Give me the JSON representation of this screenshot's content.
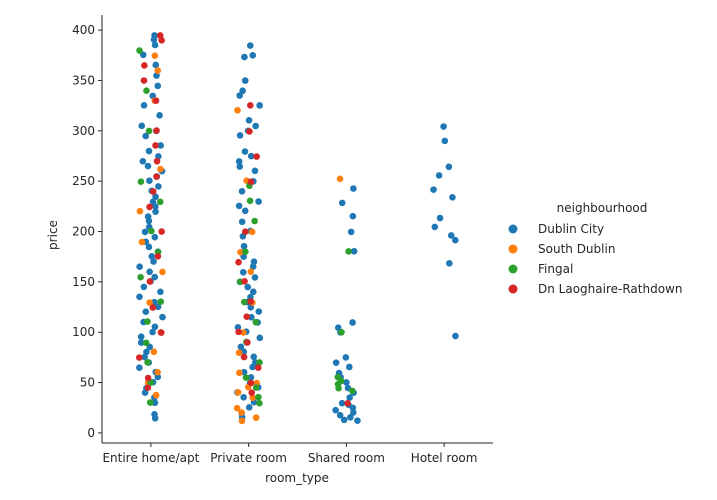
{
  "chart_data": {
    "type": "scatter",
    "subtype": "strip",
    "xlabel": "room_type",
    "ylabel": "price",
    "categories": [
      "Entire home/apt",
      "Private room",
      "Shared room",
      "Hotel room"
    ],
    "ylim": [
      -10,
      415
    ],
    "yticks": [
      0,
      50,
      100,
      150,
      200,
      250,
      300,
      350,
      400
    ],
    "grid": false,
    "legend": {
      "title": "neighbourhood",
      "position": "right",
      "entries": [
        "Dublin City",
        "South Dublin",
        "Fingal",
        "Dn Laoghaire-Rathdown"
      ]
    },
    "colors": {
      "Dublin City": "#1f77b4",
      "South Dublin": "#ff7f0e",
      "Fingal": "#2ca02c",
      "Dn Laoghaire-Rathdown": "#d62728"
    },
    "series": [
      {
        "name": "Dublin City",
        "points": [
          [
            "Entire home/apt",
            395
          ],
          [
            "Entire home/apt",
            390
          ],
          [
            "Entire home/apt",
            385
          ],
          [
            "Entire home/apt",
            375
          ],
          [
            "Entire home/apt",
            365
          ],
          [
            "Entire home/apt",
            355
          ],
          [
            "Entire home/apt",
            345
          ],
          [
            "Entire home/apt",
            335
          ],
          [
            "Entire home/apt",
            325
          ],
          [
            "Entire home/apt",
            315
          ],
          [
            "Entire home/apt",
            305
          ],
          [
            "Entire home/apt",
            300
          ],
          [
            "Entire home/apt",
            295
          ],
          [
            "Entire home/apt",
            285
          ],
          [
            "Entire home/apt",
            280
          ],
          [
            "Entire home/apt",
            275
          ],
          [
            "Entire home/apt",
            270
          ],
          [
            "Entire home/apt",
            265
          ],
          [
            "Entire home/apt",
            260
          ],
          [
            "Entire home/apt",
            255
          ],
          [
            "Entire home/apt",
            250
          ],
          [
            "Entire home/apt",
            245
          ],
          [
            "Entire home/apt",
            240
          ],
          [
            "Entire home/apt",
            235
          ],
          [
            "Entire home/apt",
            230
          ],
          [
            "Entire home/apt",
            225
          ],
          [
            "Entire home/apt",
            220
          ],
          [
            "Entire home/apt",
            215
          ],
          [
            "Entire home/apt",
            210
          ],
          [
            "Entire home/apt",
            205
          ],
          [
            "Entire home/apt",
            200
          ],
          [
            "Entire home/apt",
            195
          ],
          [
            "Entire home/apt",
            190
          ],
          [
            "Entire home/apt",
            185
          ],
          [
            "Entire home/apt",
            180
          ],
          [
            "Entire home/apt",
            175
          ],
          [
            "Entire home/apt",
            170
          ],
          [
            "Entire home/apt",
            165
          ],
          [
            "Entire home/apt",
            160
          ],
          [
            "Entire home/apt",
            155
          ],
          [
            "Entire home/apt",
            150
          ],
          [
            "Entire home/apt",
            145
          ],
          [
            "Entire home/apt",
            140
          ],
          [
            "Entire home/apt",
            135
          ],
          [
            "Entire home/apt",
            130
          ],
          [
            "Entire home/apt",
            125
          ],
          [
            "Entire home/apt",
            120
          ],
          [
            "Entire home/apt",
            115
          ],
          [
            "Entire home/apt",
            110
          ],
          [
            "Entire home/apt",
            105
          ],
          [
            "Entire home/apt",
            100
          ],
          [
            "Entire home/apt",
            95
          ],
          [
            "Entire home/apt",
            90
          ],
          [
            "Entire home/apt",
            85
          ],
          [
            "Entire home/apt",
            80
          ],
          [
            "Entire home/apt",
            75
          ],
          [
            "Entire home/apt",
            70
          ],
          [
            "Entire home/apt",
            65
          ],
          [
            "Entire home/apt",
            60
          ],
          [
            "Entire home/apt",
            55
          ],
          [
            "Entire home/apt",
            50
          ],
          [
            "Entire home/apt",
            45
          ],
          [
            "Entire home/apt",
            40
          ],
          [
            "Entire home/apt",
            35
          ],
          [
            "Entire home/apt",
            30
          ],
          [
            "Entire home/apt",
            18
          ],
          [
            "Entire home/apt",
            15
          ],
          [
            "Private room",
            385
          ],
          [
            "Private room",
            375
          ],
          [
            "Private room",
            373
          ],
          [
            "Private room",
            350
          ],
          [
            "Private room",
            340
          ],
          [
            "Private room",
            335
          ],
          [
            "Private room",
            325
          ],
          [
            "Private room",
            310
          ],
          [
            "Private room",
            305
          ],
          [
            "Private room",
            300
          ],
          [
            "Private room",
            295
          ],
          [
            "Private room",
            280
          ],
          [
            "Private room",
            275
          ],
          [
            "Private room",
            270
          ],
          [
            "Private room",
            265
          ],
          [
            "Private room",
            260
          ],
          [
            "Private room",
            250
          ],
          [
            "Private room",
            240
          ],
          [
            "Private room",
            230
          ],
          [
            "Private room",
            225
          ],
          [
            "Private room",
            220
          ],
          [
            "Private room",
            210
          ],
          [
            "Private room",
            200
          ],
          [
            "Private room",
            195
          ],
          [
            "Private room",
            185
          ],
          [
            "Private room",
            175
          ],
          [
            "Private room",
            170
          ],
          [
            "Private room",
            165
          ],
          [
            "Private room",
            160
          ],
          [
            "Private room",
            155
          ],
          [
            "Private room",
            150
          ],
          [
            "Private room",
            145
          ],
          [
            "Private room",
            140
          ],
          [
            "Private room",
            135
          ],
          [
            "Private room",
            130
          ],
          [
            "Private room",
            125
          ],
          [
            "Private room",
            120
          ],
          [
            "Private room",
            115
          ],
          [
            "Private room",
            110
          ],
          [
            "Private room",
            105
          ],
          [
            "Private room",
            100
          ],
          [
            "Private room",
            95
          ],
          [
            "Private room",
            90
          ],
          [
            "Private room",
            85
          ],
          [
            "Private room",
            80
          ],
          [
            "Private room",
            75
          ],
          [
            "Private room",
            70
          ],
          [
            "Private room",
            65
          ],
          [
            "Private room",
            60
          ],
          [
            "Private room",
            55
          ],
          [
            "Private room",
            50
          ],
          [
            "Private room",
            45
          ],
          [
            "Private room",
            40
          ],
          [
            "Private room",
            35
          ],
          [
            "Private room",
            30
          ],
          [
            "Private room",
            25
          ],
          [
            "Private room",
            20
          ],
          [
            "Private room",
            15
          ],
          [
            "Shared room",
            243
          ],
          [
            "Shared room",
            228
          ],
          [
            "Shared room",
            215
          ],
          [
            "Shared room",
            200
          ],
          [
            "Shared room",
            180
          ],
          [
            "Shared room",
            110
          ],
          [
            "Shared room",
            105
          ],
          [
            "Shared room",
            100
          ],
          [
            "Shared room",
            75
          ],
          [
            "Shared room",
            70
          ],
          [
            "Shared room",
            65
          ],
          [
            "Shared room",
            60
          ],
          [
            "Shared room",
            55
          ],
          [
            "Shared room",
            50
          ],
          [
            "Shared room",
            45
          ],
          [
            "Shared room",
            40
          ],
          [
            "Shared room",
            35
          ],
          [
            "Shared room",
            30
          ],
          [
            "Shared room",
            28
          ],
          [
            "Shared room",
            25
          ],
          [
            "Shared room",
            22
          ],
          [
            "Shared room",
            20
          ],
          [
            "Shared room",
            18
          ],
          [
            "Shared room",
            15
          ],
          [
            "Shared room",
            13
          ],
          [
            "Shared room",
            12
          ],
          [
            "Hotel room",
            304
          ],
          [
            "Hotel room",
            290
          ],
          [
            "Hotel room",
            264
          ],
          [
            "Hotel room",
            256
          ],
          [
            "Hotel room",
            242
          ],
          [
            "Hotel room",
            234
          ],
          [
            "Hotel room",
            214
          ],
          [
            "Hotel room",
            204
          ],
          [
            "Hotel room",
            196
          ],
          [
            "Hotel room",
            191
          ],
          [
            "Hotel room",
            168
          ],
          [
            "Hotel room",
            96
          ]
        ]
      },
      {
        "name": "South Dublin",
        "points": [
          [
            "Entire home/apt",
            375
          ],
          [
            "Entire home/apt",
            360
          ],
          [
            "Entire home/apt",
            330
          ],
          [
            "Entire home/apt",
            262
          ],
          [
            "Entire home/apt",
            220
          ],
          [
            "Entire home/apt",
            190
          ],
          [
            "Entire home/apt",
            160
          ],
          [
            "Entire home/apt",
            130
          ],
          [
            "Entire home/apt",
            100
          ],
          [
            "Entire home/apt",
            80
          ],
          [
            "Entire home/apt",
            60
          ],
          [
            "Entire home/apt",
            50
          ],
          [
            "Entire home/apt",
            38
          ],
          [
            "Private room",
            320
          ],
          [
            "Private room",
            250
          ],
          [
            "Private room",
            200
          ],
          [
            "Private room",
            180
          ],
          [
            "Private room",
            160
          ],
          [
            "Private room",
            130
          ],
          [
            "Private room",
            100
          ],
          [
            "Private room",
            80
          ],
          [
            "Private room",
            60
          ],
          [
            "Private room",
            50
          ],
          [
            "Private room",
            45
          ],
          [
            "Private room",
            40
          ],
          [
            "Private room",
            35
          ],
          [
            "Private room",
            25
          ],
          [
            "Private room",
            20
          ],
          [
            "Private room",
            15
          ],
          [
            "Private room",
            12
          ],
          [
            "Shared room",
            252
          ]
        ]
      },
      {
        "name": "Fingal",
        "points": [
          [
            "Entire home/apt",
            380
          ],
          [
            "Entire home/apt",
            340
          ],
          [
            "Entire home/apt",
            300
          ],
          [
            "Entire home/apt",
            250
          ],
          [
            "Entire home/apt",
            230
          ],
          [
            "Entire home/apt",
            200
          ],
          [
            "Entire home/apt",
            180
          ],
          [
            "Entire home/apt",
            155
          ],
          [
            "Entire home/apt",
            130
          ],
          [
            "Entire home/apt",
            110
          ],
          [
            "Entire home/apt",
            90
          ],
          [
            "Entire home/apt",
            70
          ],
          [
            "Entire home/apt",
            50
          ],
          [
            "Entire home/apt",
            30
          ],
          [
            "Private room",
            246
          ],
          [
            "Private room",
            230
          ],
          [
            "Private room",
            210
          ],
          [
            "Private room",
            180
          ],
          [
            "Private room",
            150
          ],
          [
            "Private room",
            130
          ],
          [
            "Private room",
            110
          ],
          [
            "Private room",
            90
          ],
          [
            "Private room",
            70
          ],
          [
            "Private room",
            55
          ],
          [
            "Private room",
            45
          ],
          [
            "Private room",
            35
          ],
          [
            "Private room",
            30
          ],
          [
            "Shared room",
            180
          ],
          [
            "Shared room",
            100
          ],
          [
            "Shared room",
            55
          ],
          [
            "Shared room",
            52
          ],
          [
            "Shared room",
            48
          ],
          [
            "Shared room",
            45
          ],
          [
            "Shared room",
            42
          ]
        ]
      },
      {
        "name": "Dn Laoghaire-Rathdown",
        "points": [
          [
            "Entire home/apt",
            395
          ],
          [
            "Entire home/apt",
            390
          ],
          [
            "Entire home/apt",
            365
          ],
          [
            "Entire home/apt",
            350
          ],
          [
            "Entire home/apt",
            330
          ],
          [
            "Entire home/apt",
            300
          ],
          [
            "Entire home/apt",
            285
          ],
          [
            "Entire home/apt",
            270
          ],
          [
            "Entire home/apt",
            255
          ],
          [
            "Entire home/apt",
            240
          ],
          [
            "Entire home/apt",
            225
          ],
          [
            "Entire home/apt",
            200
          ],
          [
            "Entire home/apt",
            175
          ],
          [
            "Entire home/apt",
            150
          ],
          [
            "Entire home/apt",
            125
          ],
          [
            "Entire home/apt",
            100
          ],
          [
            "Entire home/apt",
            75
          ],
          [
            "Entire home/apt",
            55
          ],
          [
            "Entire home/apt",
            45
          ],
          [
            "Private room",
            325
          ],
          [
            "Private room",
            300
          ],
          [
            "Private room",
            275
          ],
          [
            "Private room",
            250
          ],
          [
            "Private room",
            200
          ],
          [
            "Private room",
            170
          ],
          [
            "Private room",
            150
          ],
          [
            "Private room",
            130
          ],
          [
            "Private room",
            115
          ],
          [
            "Private room",
            100
          ],
          [
            "Private room",
            90
          ],
          [
            "Private room",
            75
          ],
          [
            "Private room",
            65
          ],
          [
            "Private room",
            50
          ],
          [
            "Private room",
            40
          ],
          [
            "Shared room",
            30
          ]
        ]
      }
    ]
  }
}
